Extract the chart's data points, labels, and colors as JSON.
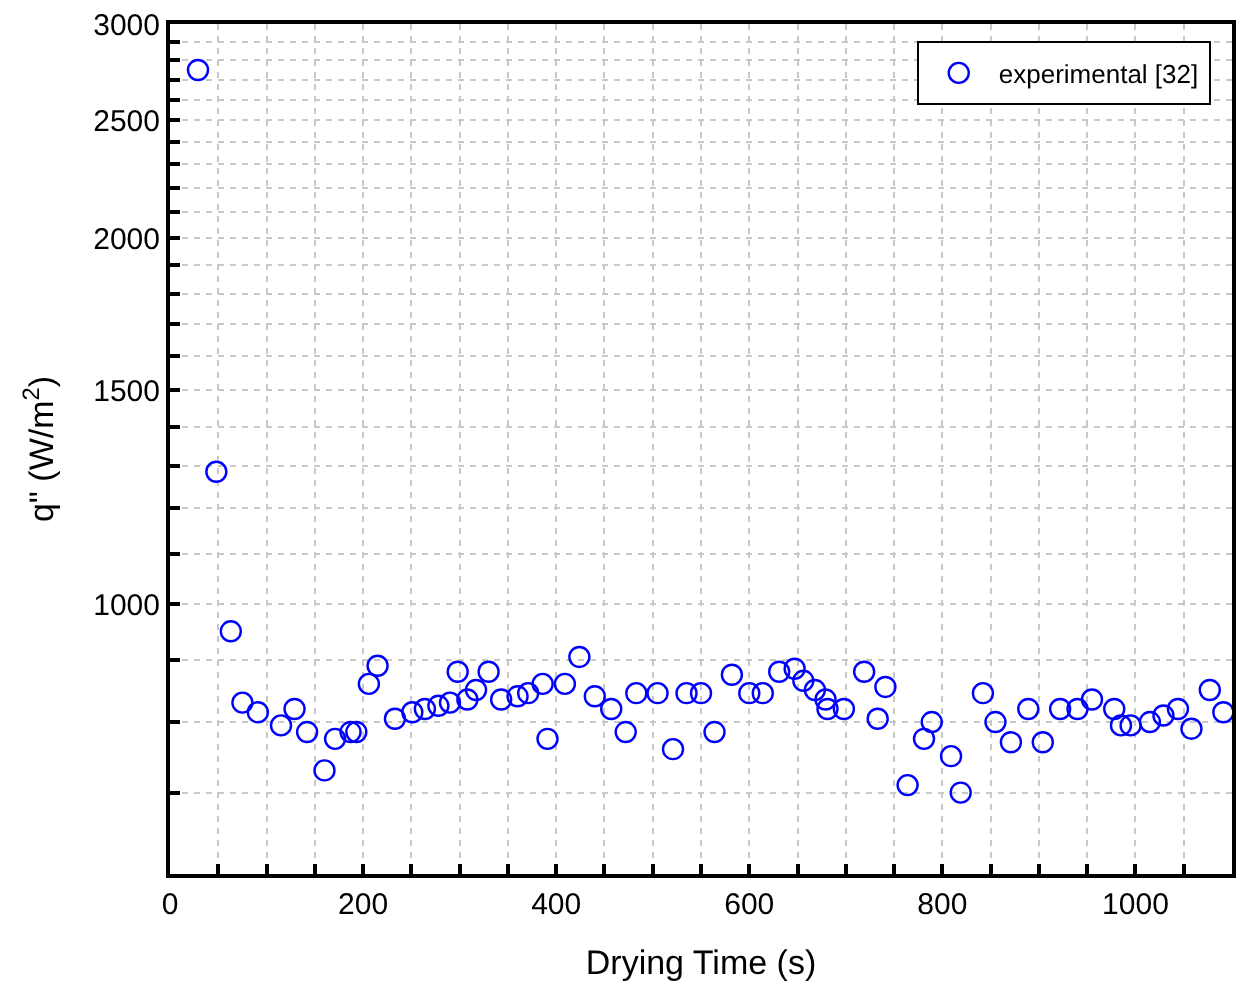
{
  "chart_data": {
    "type": "scatter",
    "xlabel": "Drying Time (s)",
    "ylabel": "q\" (W/m$^{2}$)",
    "log": "y",
    "grid": true,
    "legend": "top right",
    "marker": "circle",
    "xlim": [
      0,
      1100
    ],
    "xticks": [
      0,
      {
        "value": 50,
        "label": null
      },
      200,
      {
        "value": 100,
        "label": null
      },
      {
        "value": 150,
        "label": null
      },
      {
        "value": 250,
        "label": null
      },
      {
        "value": 300,
        "label": null
      },
      {
        "value": 350,
        "label": null
      },
      400,
      {
        "value": 450,
        "label": null
      },
      {
        "value": 500,
        "label": null
      },
      {
        "value": 550,
        "label": null
      },
      600,
      {
        "value": 650,
        "label": null
      },
      {
        "value": 700,
        "label": null
      },
      {
        "value": 750,
        "label": null
      },
      800,
      {
        "value": 850,
        "label": null
      },
      {
        "value": 900,
        "label": null
      },
      {
        "value": 950,
        "label": null
      },
      1000,
      {
        "value": 1050,
        "label": null
      }
    ],
    "ylim": [
      600,
      3000
    ],
    "yticks": [
      {
        "value": 600,
        "label": null
      },
      {
        "value": 700,
        "label": null
      },
      {
        "value": 800,
        "label": null
      },
      {
        "value": 900,
        "label": null
      },
      1000,
      {
        "value": 1100,
        "label": null
      },
      {
        "value": 1200,
        "label": null
      },
      {
        "value": 1300,
        "label": null
      },
      {
        "value": 1400,
        "label": null
      },
      1500,
      {
        "value": 1600,
        "label": null
      },
      {
        "value": 1700,
        "label": null
      },
      {
        "value": 1800,
        "label": null
      },
      {
        "value": 1900,
        "label": null
      },
      2000,
      {
        "value": 2100,
        "label": null
      },
      {
        "value": 2200,
        "label": null
      },
      {
        "value": 2300,
        "label": null
      },
      {
        "value": 2400,
        "label": null
      },
      2500,
      {
        "value": 2600,
        "label": null
      },
      {
        "value": 2700,
        "label": null
      },
      {
        "value": 2800,
        "label": null
      },
      {
        "value": 2900,
        "label": null
      },
      3000
    ],
    "series": [
      {
        "name": "experimental [32]",
        "color": "#0000ff",
        "x": [
          29,
          48,
          63,
          75,
          91,
          115,
          129,
          142,
          160,
          171,
          187,
          193,
          206,
          215,
          233,
          251,
          264,
          278,
          290,
          298,
          308,
          317,
          330,
          343,
          360,
          371,
          386,
          391,
          409,
          424,
          440,
          457,
          472,
          483,
          505,
          521,
          535,
          550,
          564,
          582,
          600,
          614,
          631,
          647,
          656,
          668,
          679,
          681,
          698,
          719,
          733,
          741,
          764,
          781,
          789,
          809,
          819,
          842,
          855,
          871,
          889,
          904,
          922,
          940,
          955,
          978,
          985,
          995,
          1015,
          1029,
          1044,
          1058,
          1077,
          1091
        ],
        "values": [
          2750,
          1285,
          950,
          830,
          815,
          795,
          820,
          785,
          730,
          775,
          785,
          785,
          860,
          890,
          805,
          815,
          820,
          825,
          830,
          880,
          835,
          850,
          880,
          835,
          840,
          845,
          860,
          775,
          860,
          905,
          840,
          820,
          785,
          845,
          845,
          760,
          845,
          845,
          785,
          875,
          845,
          845,
          880,
          885,
          865,
          850,
          835,
          820,
          820,
          880,
          805,
          855,
          710,
          775,
          800,
          750,
          700,
          845,
          800,
          770,
          820,
          770,
          820,
          820,
          835,
          820,
          795,
          795,
          800,
          810,
          820,
          790,
          850,
          815
        ]
      }
    ]
  }
}
